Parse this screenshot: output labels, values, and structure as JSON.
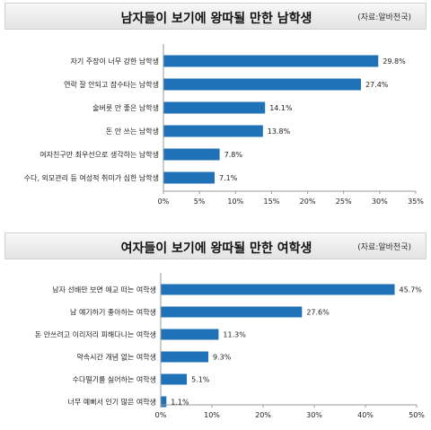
{
  "charts": [
    {
      "title": "남자들이 보기에 왕따될 만한 남학생",
      "source": "(자료:알바천국)"
    },
    {
      "title": "여자들이 보기에 왕따될 만한 여학생",
      "source": "(자료:알바천국)"
    }
  ],
  "chart_data": [
    {
      "type": "bar",
      "orientation": "horizontal",
      "title": "남자들이 보기에 왕따될 만한 남학생",
      "categories": [
        "자기 주장이 너무 강한 남학생",
        "연락 잘 안되고 잠수타는 남학생",
        "술버릇 안 좋은 남학생",
        "돈 안 쓰는 남학생",
        "여자친구만 최우선으로 생각하는 남학생",
        "수다, 외모관리 등 여성적 취미가 심한 남학생"
      ],
      "values": [
        29.8,
        27.4,
        14.1,
        13.8,
        7.8,
        7.1
      ],
      "value_labels": [
        "29.8%",
        "27.4%",
        "14.1%",
        "13.8%",
        "7.8%",
        "7.1%"
      ],
      "xlim": [
        0,
        35
      ],
      "xticks": [
        "0%",
        "5%",
        "10%",
        "15%",
        "20%",
        "25%",
        "30%",
        "35%"
      ],
      "bar_color": "#1f72b8"
    },
    {
      "type": "bar",
      "orientation": "horizontal",
      "title": "여자들이 보기에 왕따될 만한 여학생",
      "categories": [
        "남자 선배만 보면 애교 떠는 여학생",
        "남 얘기하기 좋아하는 여학생",
        "돈 안쓰려고 이리저리 피해다니는 여학생",
        "약속시간 개념 없는 여학생",
        "수다떨기를 싫어하는 여학생",
        "너무 예뻐서 인기 많은 여학생"
      ],
      "values": [
        45.7,
        27.6,
        11.3,
        9.3,
        5.1,
        1.1
      ],
      "value_labels": [
        "45.7%",
        "27.6%",
        "11.3%",
        "9.3%",
        "5.1%",
        "1.1%"
      ],
      "xlim": [
        0,
        50
      ],
      "xticks": [
        "0%",
        "10%",
        "20%",
        "30%",
        "40%",
        "50%"
      ],
      "bar_color": "#1f72b8"
    }
  ]
}
